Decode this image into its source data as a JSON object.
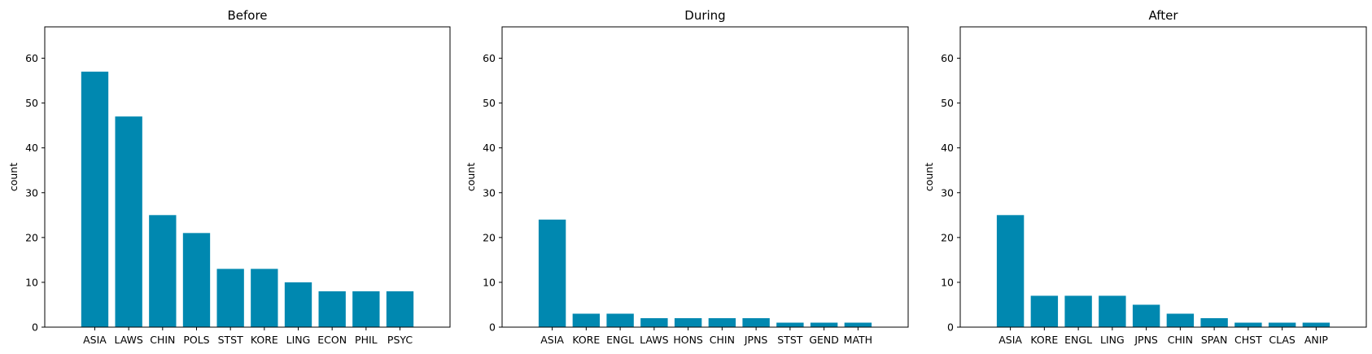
{
  "chart_data": [
    {
      "type": "bar",
      "title": "Before",
      "xlabel": "",
      "ylabel": "count",
      "ylim": [
        0,
        67
      ],
      "yticks": [
        0,
        10,
        20,
        30,
        40,
        50,
        60
      ],
      "categories": [
        "ASIA",
        "LAWS",
        "CHIN",
        "POLS",
        "STST",
        "KORE",
        "LING",
        "ECON",
        "PHIL",
        "PSYC"
      ],
      "values": [
        57,
        47,
        25,
        21,
        13,
        13,
        10,
        8,
        8,
        8
      ],
      "color": "#0088b0",
      "grid": false
    },
    {
      "type": "bar",
      "title": "During",
      "xlabel": "",
      "ylabel": "count",
      "ylim": [
        0,
        67
      ],
      "yticks": [
        0,
        10,
        20,
        30,
        40,
        50,
        60
      ],
      "categories": [
        "ASIA",
        "KORE",
        "ENGL",
        "LAWS",
        "HONS",
        "CHIN",
        "JPNS",
        "STST",
        "GEND",
        "MATH"
      ],
      "values": [
        24,
        3,
        3,
        2,
        2,
        2,
        2,
        1,
        1,
        1
      ],
      "color": "#0088b0",
      "grid": false
    },
    {
      "type": "bar",
      "title": "After",
      "xlabel": "",
      "ylabel": "count",
      "ylim": [
        0,
        67
      ],
      "yticks": [
        0,
        10,
        20,
        30,
        40,
        50,
        60
      ],
      "categories": [
        "ASIA",
        "KORE",
        "ENGL",
        "LING",
        "JPNS",
        "CHIN",
        "SPAN",
        "CHST",
        "CLAS",
        "ANIP"
      ],
      "values": [
        25,
        7,
        7,
        7,
        5,
        3,
        2,
        1,
        1,
        1
      ],
      "color": "#0088b0",
      "grid": false
    }
  ]
}
